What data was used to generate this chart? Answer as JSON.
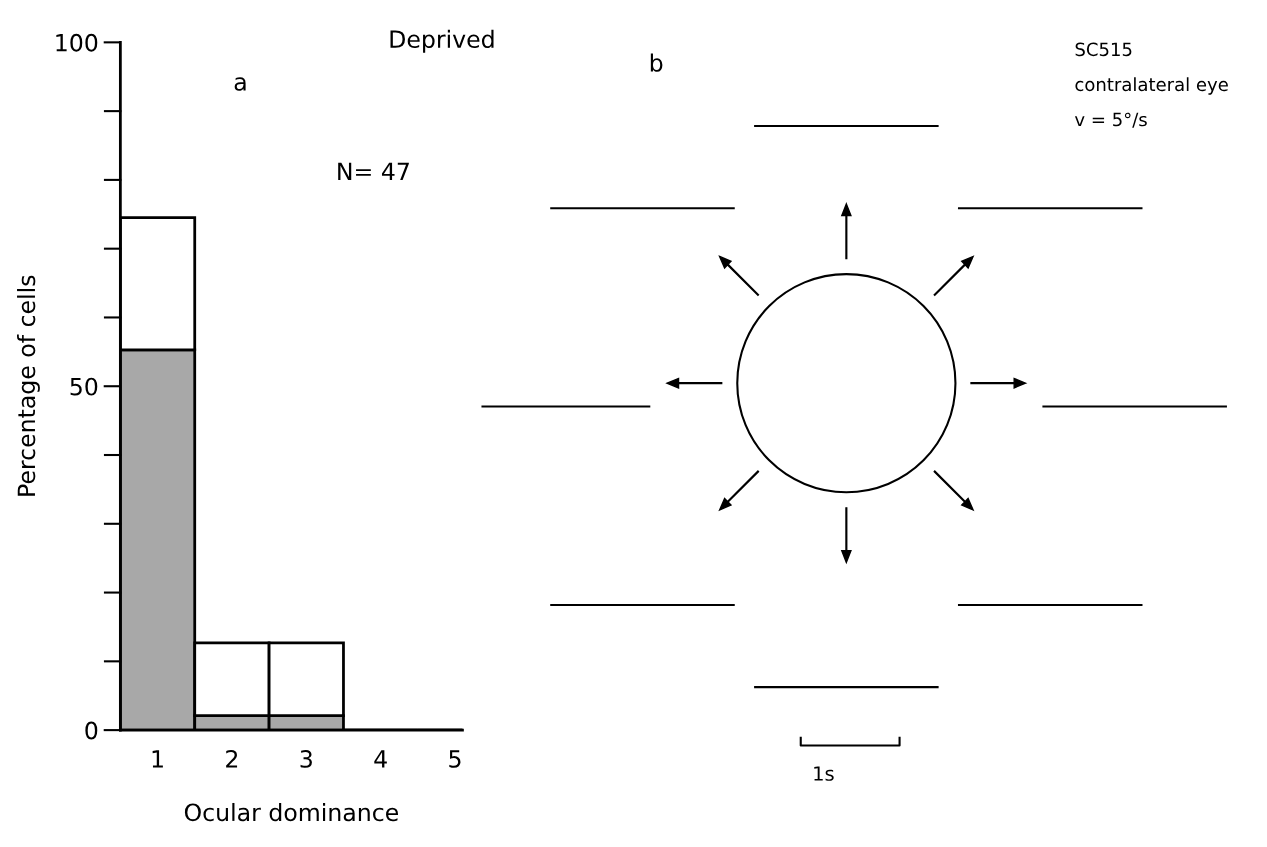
{
  "chart_data": [
    {
      "type": "bar",
      "title": "Deprived",
      "xlabel": "Ocular dominance",
      "ylabel": "Percentage of cells",
      "categories": [
        "1",
        "2",
        "3",
        "4",
        "5"
      ],
      "stacked": true,
      "series": [
        {
          "color": "#a8a8a8",
          "values": [
            55.3,
            2.1,
            2.1,
            0,
            0
          ]
        },
        {
          "color": "#ffffff",
          "values": [
            19.2,
            10.6,
            10.6,
            0,
            0
          ]
        }
      ],
      "ylim": [
        0,
        100
      ],
      "yticks": [
        0,
        {
          "value": 10,
          "label": null
        },
        {
          "value": 20,
          "label": null
        },
        {
          "value": 30,
          "label": null
        },
        {
          "value": 40,
          "label": null
        },
        50,
        {
          "value": 60,
          "label": null
        },
        {
          "value": 70,
          "label": null
        },
        {
          "value": 80,
          "label": null
        },
        {
          "value": 90,
          "label": null
        },
        100
      ],
      "grid": false,
      "legend": false,
      "annotations": [
        "a",
        "N= 47"
      ]
    },
    {
      "type": "other",
      "annotations": [
        "b",
        "SC515",
        "contralateral eye",
        "v = 5°/s",
        "1s"
      ]
    }
  ]
}
